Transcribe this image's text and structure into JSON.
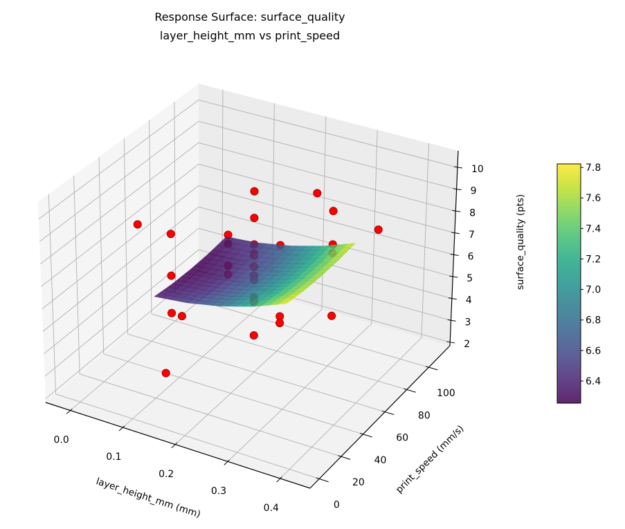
{
  "chart_data": {
    "type": "surface3d_scatter",
    "title": "Response Surface: surface_quality",
    "subtitle": "layer_height_mm vs print_speed",
    "xlabel": "layer_height_mm (mm)",
    "ylabel": "print_speed (mm/s)",
    "zlabel": "surface_quality (pts)",
    "xlim": [
      -0.047,
      0.457
    ],
    "ylim": [
      -8.4,
      119.3
    ],
    "zlim": [
      1.84,
      10.76
    ],
    "grid": true,
    "xticks": [
      0.0,
      0.1,
      0.2,
      0.3,
      0.4
    ],
    "xtick_labels": [
      "0.0",
      "0.1",
      "0.2",
      "0.3",
      "0.4"
    ],
    "yticks": [
      0,
      20,
      40,
      60,
      80,
      100
    ],
    "ytick_labels": [
      "0",
      "20",
      "40",
      "60",
      "80",
      "100"
    ],
    "zticks": [
      2,
      3,
      4,
      5,
      6,
      7,
      8,
      9,
      10
    ],
    "ztick_labels": [
      "2",
      "3",
      "4",
      "5",
      "6",
      "7",
      "8",
      "9",
      "10"
    ],
    "surface": {
      "colormap": "viridis",
      "alpha": 0.85,
      "x": [
        0.1,
        0.1625,
        0.225,
        0.2875,
        0.35
      ],
      "y": [
        20,
        35,
        50,
        65,
        80
      ],
      "z": [
        [
          6.37,
          6.27,
          6.24,
          6.27,
          6.37
        ],
        [
          6.53,
          6.42,
          6.39,
          6.42,
          6.51
        ],
        [
          6.82,
          6.71,
          6.67,
          6.69,
          6.79
        ],
        [
          7.24,
          7.13,
          7.08,
          7.1,
          7.19
        ],
        [
          7.8,
          7.68,
          7.63,
          7.65,
          7.73
        ]
      ]
    },
    "scatter": {
      "color": "#ff0000",
      "edgecolor": "#8b0000",
      "points": [
        [
          0.0,
          50,
          7.6
        ],
        [
          0.04,
          60,
          7.0
        ],
        [
          0.2,
          60,
          10.0
        ],
        [
          0.23,
          100,
          8.3
        ],
        [
          0.2,
          60,
          8.8
        ],
        [
          0.35,
          60,
          10.1
        ],
        [
          0.35,
          100,
          7.4
        ],
        [
          0.15,
          60,
          7.7
        ],
        [
          0.15,
          60,
          7.3
        ],
        [
          0.2,
          60,
          7.6
        ],
        [
          0.25,
          60,
          7.9
        ],
        [
          0.35,
          60,
          8.6
        ],
        [
          0.2,
          60,
          7.2
        ],
        [
          0.2,
          60,
          7.1
        ],
        [
          0.35,
          60,
          8.2
        ],
        [
          0.15,
          60,
          6.3
        ],
        [
          0.2,
          60,
          6.6
        ],
        [
          0.04,
          60,
          5.1
        ],
        [
          0.15,
          60,
          5.9
        ],
        [
          0.2,
          60,
          6.2
        ],
        [
          0.2,
          60,
          6.0
        ],
        [
          0.2,
          60,
          5.2
        ],
        [
          0.2,
          60,
          5.0
        ],
        [
          0.04,
          60,
          3.4
        ],
        [
          0.06,
          60,
          3.4
        ],
        [
          0.25,
          60,
          4.7
        ],
        [
          0.25,
          60,
          4.4
        ],
        [
          0.35,
          60,
          5.4
        ],
        [
          0.2,
          60,
          3.5
        ],
        [
          0.12,
          20,
          3.1
        ]
      ]
    },
    "colorbar": {
      "colormap": "viridis",
      "range": [
        6.255,
        7.823
      ],
      "ticks": [
        6.4,
        6.6,
        6.8,
        7.0,
        7.2,
        7.4,
        7.6,
        7.8
      ],
      "tick_labels": [
        "6.4",
        "6.6",
        "6.8",
        "7.0",
        "7.2",
        "7.4",
        "7.6",
        "7.8"
      ]
    }
  }
}
